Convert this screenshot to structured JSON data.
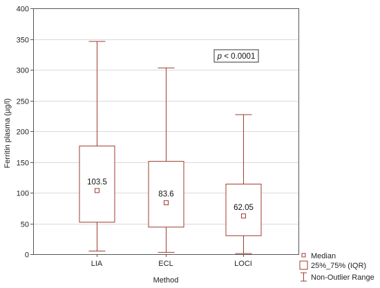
{
  "chart_data": {
    "type": "boxplot",
    "title": "",
    "xlabel": "Method",
    "ylabel": "Ferritin plasma (µg/l)",
    "ylim": [
      0,
      400
    ],
    "yticks": [
      0,
      50,
      100,
      150,
      200,
      250,
      300,
      350,
      400
    ],
    "grid": true,
    "legend_position": "bottom-right",
    "categories": [
      "LIA",
      "ECL",
      "LOCI"
    ],
    "boxes": [
      {
        "category": "LIA",
        "median": 103.5,
        "median_label": "103.5",
        "q1": 52,
        "q3": 176,
        "whisker_low": 5,
        "whisker_high": 346
      },
      {
        "category": "ECL",
        "median": 83.6,
        "median_label": "83.6",
        "q1": 44,
        "q3": 151,
        "whisker_low": 3,
        "whisker_high": 303
      },
      {
        "category": "LOCI",
        "median": 62.05,
        "median_label": "62.05",
        "q1": 30,
        "q3": 114,
        "whisker_low": 1,
        "whisker_high": 227
      }
    ],
    "annotation": {
      "p_symbol": "p",
      "text": " < 0.0001"
    },
    "legend": [
      {
        "symbol": "median",
        "label": "Median"
      },
      {
        "symbol": "box",
        "label": "25%_75% (IQR)"
      },
      {
        "symbol": "whisker",
        "label": "Non-Outlier Range"
      }
    ],
    "colors": {
      "box": "#a03a2e",
      "grid": "#d9d9d9",
      "axis": "#555555",
      "text": "#222222"
    }
  }
}
